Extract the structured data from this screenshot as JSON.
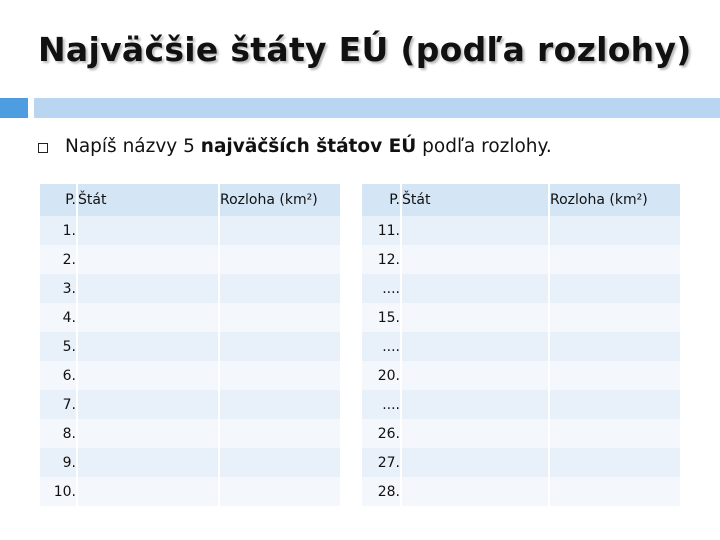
{
  "slide": {
    "title": "Najväčšie štáty EÚ (podľa rozlohy)",
    "bullet": {
      "pre": "Napíš názvy 5 ",
      "bold": "najväčších štátov EÚ",
      "post": " podľa rozlohy."
    }
  },
  "colors": {
    "title_shadow": "#888888",
    "accent_dark": "#4d9de0",
    "accent_light": "#b8d6f1",
    "header_fill": "#d4e5f5",
    "row_odd": "#e8f0fa",
    "row_even": "#f4f8fc"
  },
  "tables": [
    {
      "headers": {
        "num": "P.",
        "name": "Štát",
        "area": "Rozloha (km²)"
      },
      "rows": [
        {
          "num": "1.",
          "name": "",
          "area": ""
        },
        {
          "num": "2.",
          "name": "",
          "area": ""
        },
        {
          "num": "3.",
          "name": "",
          "area": ""
        },
        {
          "num": "4.",
          "name": "",
          "area": ""
        },
        {
          "num": "5.",
          "name": "",
          "area": ""
        },
        {
          "num": "6.",
          "name": "",
          "area": ""
        },
        {
          "num": "7.",
          "name": "",
          "area": ""
        },
        {
          "num": "8.",
          "name": "",
          "area": ""
        },
        {
          "num": "9.",
          "name": "",
          "area": ""
        },
        {
          "num": "10.",
          "name": "",
          "area": ""
        }
      ]
    },
    {
      "headers": {
        "num": "P.",
        "name": "Štát",
        "area": "Rozloha (km²)"
      },
      "rows": [
        {
          "num": "11.",
          "name": "",
          "area": ""
        },
        {
          "num": "12.",
          "name": "",
          "area": ""
        },
        {
          "num": "....",
          "name": "",
          "area": ""
        },
        {
          "num": "15.",
          "name": "",
          "area": ""
        },
        {
          "num": "....",
          "name": "",
          "area": ""
        },
        {
          "num": "20.",
          "name": "",
          "area": ""
        },
        {
          "num": "....",
          "name": "",
          "area": ""
        },
        {
          "num": "26.",
          "name": "",
          "area": ""
        },
        {
          "num": "27.",
          "name": "",
          "area": ""
        },
        {
          "num": "28.",
          "name": "",
          "area": ""
        }
      ]
    }
  ]
}
